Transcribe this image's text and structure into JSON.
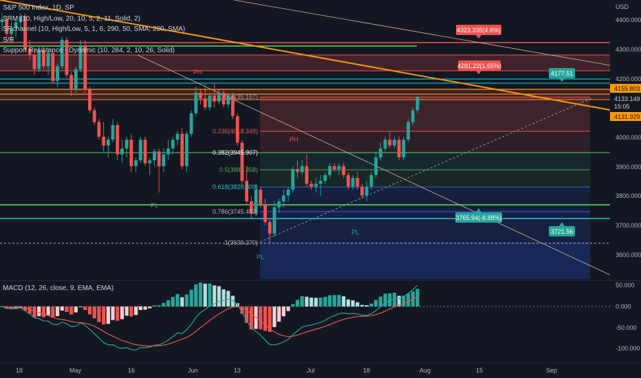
{
  "legend": {
    "title": "S&P 500 Index, 1D, SP",
    "line2": "SRM (10, High/Low, 20, 10, 5, 2, 11, Solid, 2)",
    "line3": "SRchannel (10, High/Low, 5, 1, 6, 290, 50, SMA, 200, SMA)",
    "line4": "S/R",
    "line5": "Support Resistance - Dynamic (10, 284, 2, 10, 26, Solid)",
    "macd": "MACD (12, 26, close, 9, EMA, EMA)"
  },
  "price_axis": {
    "currency": "USD",
    "ticks": [
      "4400.000",
      "4300.000",
      "4200.000",
      "4000.000",
      "3900.000",
      "3800.000",
      "3700.000",
      "3600.000"
    ],
    "current_price": "4133.149",
    "countdown": "15:05",
    "tags": [
      {
        "text": "4155.803",
        "color": "#ff9800"
      },
      {
        "text": "4131.929",
        "color": "#ff9800"
      }
    ]
  },
  "macd_axis": {
    "ticks": [
      "50.000",
      "0.000",
      "-50.000",
      "-100.000"
    ]
  },
  "time_axis": {
    "ticks": [
      "18",
      "May",
      "16",
      "Jun",
      "13",
      "Jul",
      "18",
      "Aug",
      "15",
      "Sep"
    ]
  },
  "boxes": {
    "target_high": "4323.335(4.6%)",
    "target_mid": "4201.22(1.65%)",
    "level_a": "4177.51",
    "level_b": "3765.94(-8.88%)",
    "level_c": "3721.56"
  },
  "fib_labels": [
    "0(4135.167)",
    "0.236(4018.349)",
    "0.382(3945.907)",
    "0.5(3887.358)",
    "0.618(3828.809)",
    "0.786(3745.452)",
    "1(3639.270)"
  ],
  "pivot_labels": [
    "PH",
    "PH",
    "PL",
    "PL",
    "PL"
  ],
  "colors": {
    "up": "#26a69a",
    "down": "#ef5350",
    "bg": "#131722",
    "orange": "#ff9800"
  },
  "chart_data": {
    "type": "candlestick",
    "title": "S&P 500 Index, 1D, SP",
    "ylim": [
      3560,
      4420
    ],
    "candles": [
      [
        4390,
        4420,
        4360,
        4400
      ],
      [
        4400,
        4410,
        4330,
        4350
      ],
      [
        4350,
        4390,
        4320,
        4370
      ],
      [
        4370,
        4400,
        4340,
        4390
      ],
      [
        4390,
        4420,
        4370,
        4410
      ],
      [
        4410,
        4420,
        4290,
        4300
      ],
      [
        4300,
        4330,
        4260,
        4280
      ],
      [
        4280,
        4300,
        4210,
        4230
      ],
      [
        4230,
        4310,
        4220,
        4295
      ],
      [
        4295,
        4310,
        4230,
        4240
      ],
      [
        4240,
        4300,
        4210,
        4285
      ],
      [
        4285,
        4295,
        4180,
        4190
      ],
      [
        4190,
        4250,
        4170,
        4240
      ],
      [
        4240,
        4340,
        4230,
        4330
      ],
      [
        4330,
        4340,
        4200,
        4210
      ],
      [
        4210,
        4220,
        4140,
        4160
      ],
      [
        4160,
        4240,
        4150,
        4230
      ],
      [
        4230,
        4330,
        4220,
        4310
      ],
      [
        4310,
        4330,
        4150,
        4160
      ],
      [
        4160,
        4170,
        4080,
        4090
      ],
      [
        4090,
        4100,
        4040,
        4050
      ],
      [
        4050,
        4060,
        3990,
        4000
      ],
      [
        4000,
        4050,
        3950,
        3970
      ],
      [
        3970,
        4000,
        3930,
        3990
      ],
      [
        3990,
        4060,
        3980,
        4040
      ],
      [
        4040,
        4050,
        3920,
        3940
      ],
      [
        3940,
        3990,
        3910,
        3960
      ],
      [
        3960,
        4000,
        3930,
        3990
      ],
      [
        3990,
        4010,
        3880,
        3900
      ],
      [
        3900,
        3930,
        3880,
        3920
      ],
      [
        3920,
        4000,
        3910,
        3990
      ],
      [
        3990,
        4000,
        3900,
        3910
      ],
      [
        3910,
        3930,
        3870,
        3920
      ],
      [
        3920,
        3960,
        3900,
        3950
      ],
      [
        3950,
        3960,
        3810,
        3900
      ],
      [
        3900,
        3960,
        3880,
        3940
      ],
      [
        3940,
        3990,
        3920,
        3960
      ],
      [
        3960,
        4000,
        3940,
        3990
      ],
      [
        3990,
        4020,
        3970,
        4010
      ],
      [
        4010,
        4030,
        3890,
        3900
      ],
      [
        3900,
        4020,
        3880,
        4010
      ],
      [
        4010,
        4090,
        4000,
        4080
      ],
      [
        4080,
        4170,
        4070,
        4150
      ],
      [
        4150,
        4160,
        4110,
        4130
      ],
      [
        4130,
        4180,
        4090,
        4100
      ],
      [
        4100,
        4150,
        4090,
        4140
      ],
      [
        4140,
        4180,
        4100,
        4120
      ],
      [
        4120,
        4160,
        4110,
        4150
      ],
      [
        4150,
        4160,
        4100,
        4110
      ],
      [
        4110,
        4150,
        4100,
        4140
      ],
      [
        4140,
        4150,
        4060,
        4070
      ],
      [
        4070,
        4080,
        3970,
        3980
      ],
      [
        3980,
        3990,
        3840,
        3850
      ],
      [
        3850,
        3900,
        3770,
        3780
      ],
      [
        3780,
        3800,
        3720,
        3740
      ],
      [
        3740,
        3840,
        3730,
        3820
      ],
      [
        3820,
        3830,
        3760,
        3770
      ],
      [
        3770,
        3790,
        3700,
        3710
      ],
      [
        3710,
        3720,
        3640,
        3670
      ],
      [
        3670,
        3780,
        3660,
        3760
      ],
      [
        3760,
        3790,
        3740,
        3780
      ],
      [
        3780,
        3820,
        3760,
        3800
      ],
      [
        3800,
        3830,
        3780,
        3820
      ],
      [
        3820,
        3900,
        3810,
        3890
      ],
      [
        3890,
        3920,
        3860,
        3880
      ],
      [
        3880,
        3920,
        3870,
        3900
      ],
      [
        3900,
        3940,
        3830,
        3840
      ],
      [
        3840,
        3850,
        3820,
        3830
      ],
      [
        3830,
        3860,
        3810,
        3840
      ],
      [
        3840,
        3870,
        3800,
        3850
      ],
      [
        3850,
        3880,
        3840,
        3870
      ],
      [
        3870,
        3910,
        3860,
        3900
      ],
      [
        3900,
        3910,
        3880,
        3890
      ],
      [
        3890,
        3910,
        3870,
        3900
      ],
      [
        3900,
        3910,
        3860,
        3870
      ],
      [
        3870,
        3880,
        3820,
        3830
      ],
      [
        3830,
        3870,
        3820,
        3860
      ],
      [
        3860,
        3880,
        3820,
        3830
      ],
      [
        3830,
        3840,
        3790,
        3800
      ],
      [
        3800,
        3850,
        3780,
        3830
      ],
      [
        3830,
        3880,
        3820,
        3870
      ],
      [
        3870,
        3950,
        3860,
        3930
      ],
      [
        3930,
        3980,
        3920,
        3960
      ],
      [
        3960,
        4000,
        3950,
        3990
      ],
      [
        3990,
        4020,
        3960,
        3970
      ],
      [
        3970,
        4000,
        3960,
        3990
      ],
      [
        3990,
        4000,
        3920,
        3930
      ],
      [
        3930,
        4000,
        3920,
        3990
      ],
      [
        3990,
        4060,
        3980,
        4050
      ],
      [
        4050,
        4100,
        4040,
        4090
      ],
      [
        4090,
        4140,
        4080,
        4135
      ]
    ],
    "series_labels": [
      "MACD",
      "Signal",
      "Histogram"
    ]
  }
}
